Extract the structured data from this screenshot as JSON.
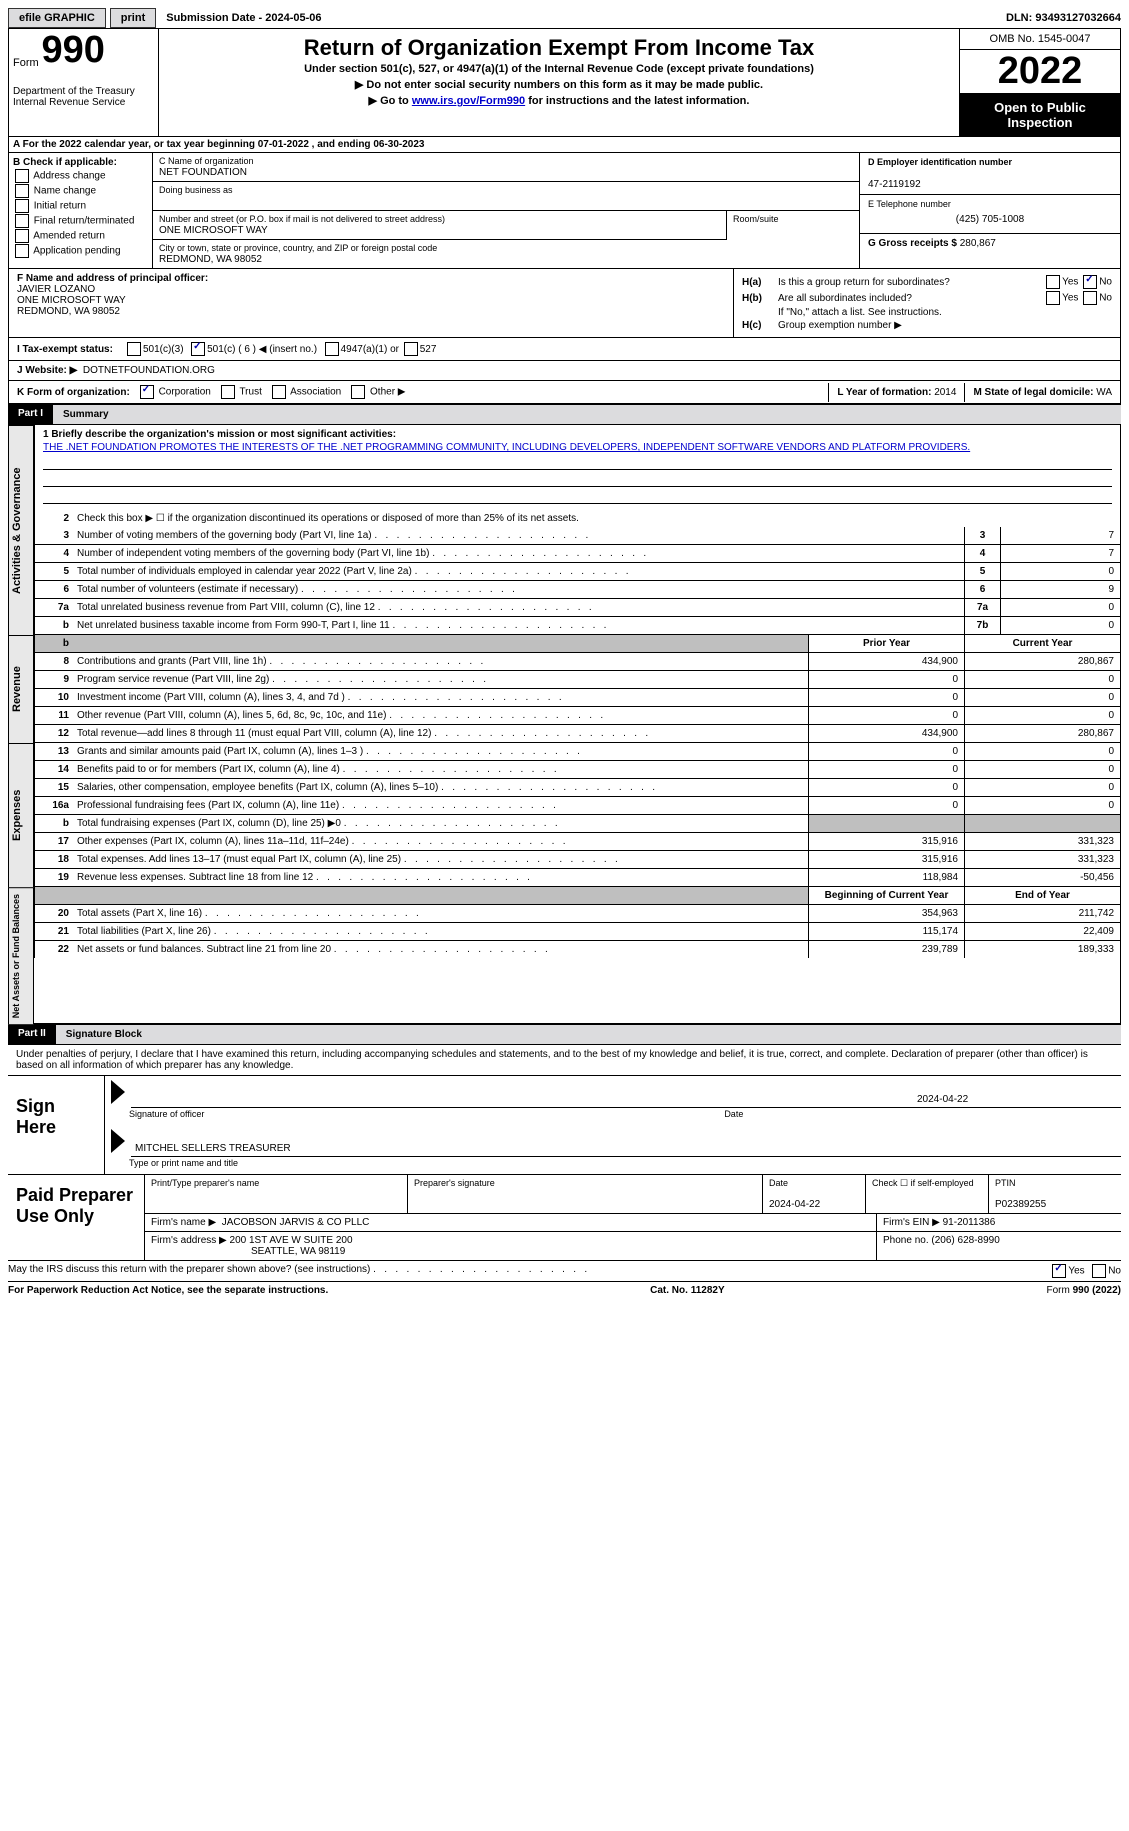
{
  "topbar": {
    "efile_label": "efile GRAPHIC",
    "print_label": "print",
    "submission_date_label": "Submission Date - 2024-05-06",
    "dln_label": "DLN: 93493127032664"
  },
  "header": {
    "form_prefix": "Form",
    "form_number": "990",
    "title": "Return of Organization Exempt From Income Tax",
    "subtitle": "Under section 501(c), 527, or 4947(a)(1) of the Internal Revenue Code (except private foundations)",
    "warn1": "▶ Do not enter social security numbers on this form as it may be made public.",
    "warn2_prefix": "▶ Go to ",
    "warn2_link": "www.irs.gov/Form990",
    "warn2_suffix": " for instructions and the latest information.",
    "dept": "Department of the Treasury\nInternal Revenue Service",
    "omb": "OMB No. 1545-0047",
    "year": "2022",
    "inspection": "Open to Public Inspection"
  },
  "section_a": "A   For the 2022 calendar year, or tax year beginning 07-01-2022    , and ending 06-30-2023",
  "section_b": {
    "label": "B Check if applicable:",
    "addr": "Address change",
    "name": "Name change",
    "initial": "Initial return",
    "final": "Final return/terminated",
    "amended": "Amended return",
    "app": "Application pending"
  },
  "section_c": {
    "name_label": "C Name of organization",
    "name": "NET FOUNDATION",
    "dba_label": "Doing business as",
    "dba": "",
    "street_label": "Number and street (or P.O. box if mail is not delivered to street address)",
    "room_label": "Room/suite",
    "street": "ONE MICROSOFT WAY",
    "city_label": "City or town, state or province, country, and ZIP or foreign postal code",
    "city": "REDMOND, WA  98052"
  },
  "section_d": {
    "ein_label": "D Employer identification number",
    "ein": "47-2119192",
    "phone_label": "E Telephone number",
    "phone": "(425) 705-1008",
    "gross_label": "G Gross receipts $",
    "gross": "280,867"
  },
  "section_f": {
    "label": "F  Name and address of principal officer:",
    "name": "JAVIER LOZANO",
    "street": "ONE MICROSOFT WAY",
    "city": "REDMOND, WA  98052"
  },
  "section_h": {
    "a_label": "H(a)",
    "a_text": "Is this a group return for subordinates?",
    "b_label": "H(b)",
    "b_text": "Are all subordinates included?",
    "b_note": "If \"No,\" attach a list. See instructions.",
    "c_label": "H(c)",
    "c_text": "Group exemption number ▶"
  },
  "section_i": {
    "label": "I   Tax-exempt status:",
    "c3": "501(c)(3)",
    "c_other": "501(c) ( 6 ) ◀ (insert no.)",
    "a1": "4947(a)(1) or",
    "s527": "527"
  },
  "section_j": {
    "label": "J   Website: ▶",
    "value": "DOTNETFOUNDATION.ORG"
  },
  "section_k": {
    "label": "K Form of organization:",
    "corp": "Corporation",
    "trust": "Trust",
    "assoc": "Association",
    "other": "Other ▶",
    "l_label": "L Year of formation:",
    "l_val": "2014",
    "m_label": "M State of legal domicile:",
    "m_val": "WA"
  },
  "parts": {
    "p1": "Part I",
    "p1_title": "Summary",
    "p2": "Part II",
    "p2_title": "Signature Block"
  },
  "summary": {
    "q1_label": "1   Briefly describe the organization's mission or most significant activities:",
    "q1_text": "THE .NET FOUNDATION PROMOTES THE INTERESTS OF THE .NET PROGRAMMING COMMUNITY, INCLUDING DEVELOPERS, INDEPENDENT SOFTWARE VENDORS AND PLATFORM PROVIDERS.",
    "q2": "Check this box ▶ ☐  if the organization discontinued its operations or disposed of more than 25% of its net assets.",
    "lines": [
      {
        "n": "3",
        "d": "Number of voting members of the governing body (Part VI, line 1a)",
        "box": "3",
        "v": "7"
      },
      {
        "n": "4",
        "d": "Number of independent voting members of the governing body (Part VI, line 1b)",
        "box": "4",
        "v": "7"
      },
      {
        "n": "5",
        "d": "Total number of individuals employed in calendar year 2022 (Part V, line 2a)",
        "box": "5",
        "v": "0"
      },
      {
        "n": "6",
        "d": "Total number of volunteers (estimate if necessary)",
        "box": "6",
        "v": "9"
      },
      {
        "n": "7a",
        "d": "Total unrelated business revenue from Part VIII, column (C), line 12",
        "box": "7a",
        "v": "0"
      },
      {
        "n": "b",
        "d": "Net unrelated business taxable income from Form 990-T, Part I, line 11",
        "box": "7b",
        "v": "0"
      }
    ],
    "col_headers": {
      "prior": "Prior Year",
      "current": "Current Year"
    },
    "revenue": [
      {
        "n": "8",
        "d": "Contributions and grants (Part VIII, line 1h)",
        "p": "434,900",
        "c": "280,867"
      },
      {
        "n": "9",
        "d": "Program service revenue (Part VIII, line 2g)",
        "p": "0",
        "c": "0"
      },
      {
        "n": "10",
        "d": "Investment income (Part VIII, column (A), lines 3, 4, and 7d )",
        "p": "0",
        "c": "0"
      },
      {
        "n": "11",
        "d": "Other revenue (Part VIII, column (A), lines 5, 6d, 8c, 9c, 10c, and 11e)",
        "p": "0",
        "c": "0"
      },
      {
        "n": "12",
        "d": "Total revenue—add lines 8 through 11 (must equal Part VIII, column (A), line 12)",
        "p": "434,900",
        "c": "280,867"
      }
    ],
    "expenses": [
      {
        "n": "13",
        "d": "Grants and similar amounts paid (Part IX, column (A), lines 1–3 )",
        "p": "0",
        "c": "0"
      },
      {
        "n": "14",
        "d": "Benefits paid to or for members (Part IX, column (A), line 4)",
        "p": "0",
        "c": "0"
      },
      {
        "n": "15",
        "d": "Salaries, other compensation, employee benefits (Part IX, column (A), lines 5–10)",
        "p": "0",
        "c": "0"
      },
      {
        "n": "16a",
        "d": "Professional fundraising fees (Part IX, column (A), line 11e)",
        "p": "0",
        "c": "0"
      },
      {
        "n": "b",
        "d": "Total fundraising expenses (Part IX, column (D), line 25) ▶0",
        "p": "grey",
        "c": "grey"
      },
      {
        "n": "17",
        "d": "Other expenses (Part IX, column (A), lines 11a–11d, 11f–24e)",
        "p": "315,916",
        "c": "331,323"
      },
      {
        "n": "18",
        "d": "Total expenses. Add lines 13–17 (must equal Part IX, column (A), line 25)",
        "p": "315,916",
        "c": "331,323"
      },
      {
        "n": "19",
        "d": "Revenue less expenses. Subtract line 18 from line 12",
        "p": "118,984",
        "c": "-50,456"
      }
    ],
    "net_headers": {
      "begin": "Beginning of Current Year",
      "end": "End of Year"
    },
    "net": [
      {
        "n": "20",
        "d": "Total assets (Part X, line 16)",
        "p": "354,963",
        "c": "211,742"
      },
      {
        "n": "21",
        "d": "Total liabilities (Part X, line 26)",
        "p": "115,174",
        "c": "22,409"
      },
      {
        "n": "22",
        "d": "Net assets or fund balances. Subtract line 21 from line 20",
        "p": "239,789",
        "c": "189,333"
      }
    ],
    "vlabels": {
      "gov": "Activities & Governance",
      "rev": "Revenue",
      "exp": "Expenses",
      "net": "Net Assets or Fund Balances"
    }
  },
  "signature": {
    "declaration": "Under penalties of perjury, I declare that I have examined this return, including accompanying schedules and statements, and to the best of my knowledge and belief, it is true, correct, and complete. Declaration of preparer (other than officer) is based on all information of which preparer has any knowledge.",
    "sign_here": "Sign Here",
    "sig_officer": "Signature of officer",
    "date": "2024-04-22",
    "date_label": "Date",
    "name_title": "MITCHEL SELLERS  TREASURER",
    "type_label": "Type or print name and title"
  },
  "preparer": {
    "label": "Paid Preparer Use Only",
    "print_name_label": "Print/Type preparer's name",
    "sig_label": "Preparer's signature",
    "date_label": "Date",
    "date": "2024-04-22",
    "check_label": "Check ☐ if self-employed",
    "ptin_label": "PTIN",
    "ptin": "P02389255",
    "firm_name_label": "Firm's name    ▶",
    "firm_name": "JACOBSON JARVIS & CO PLLC",
    "firm_ein_label": "Firm's EIN ▶",
    "firm_ein": "91-2011386",
    "firm_addr_label": "Firm's address ▶",
    "firm_addr1": "200 1ST AVE W SUITE 200",
    "firm_addr2": "SEATTLE, WA  98119",
    "phone_label": "Phone no.",
    "phone": "(206) 628-8990"
  },
  "discuss": "May the IRS discuss this return with the preparer shown above? (see instructions)",
  "footer": {
    "left": "For Paperwork Reduction Act Notice, see the separate instructions.",
    "mid": "Cat. No. 11282Y",
    "right": "Form 990 (2022)"
  }
}
